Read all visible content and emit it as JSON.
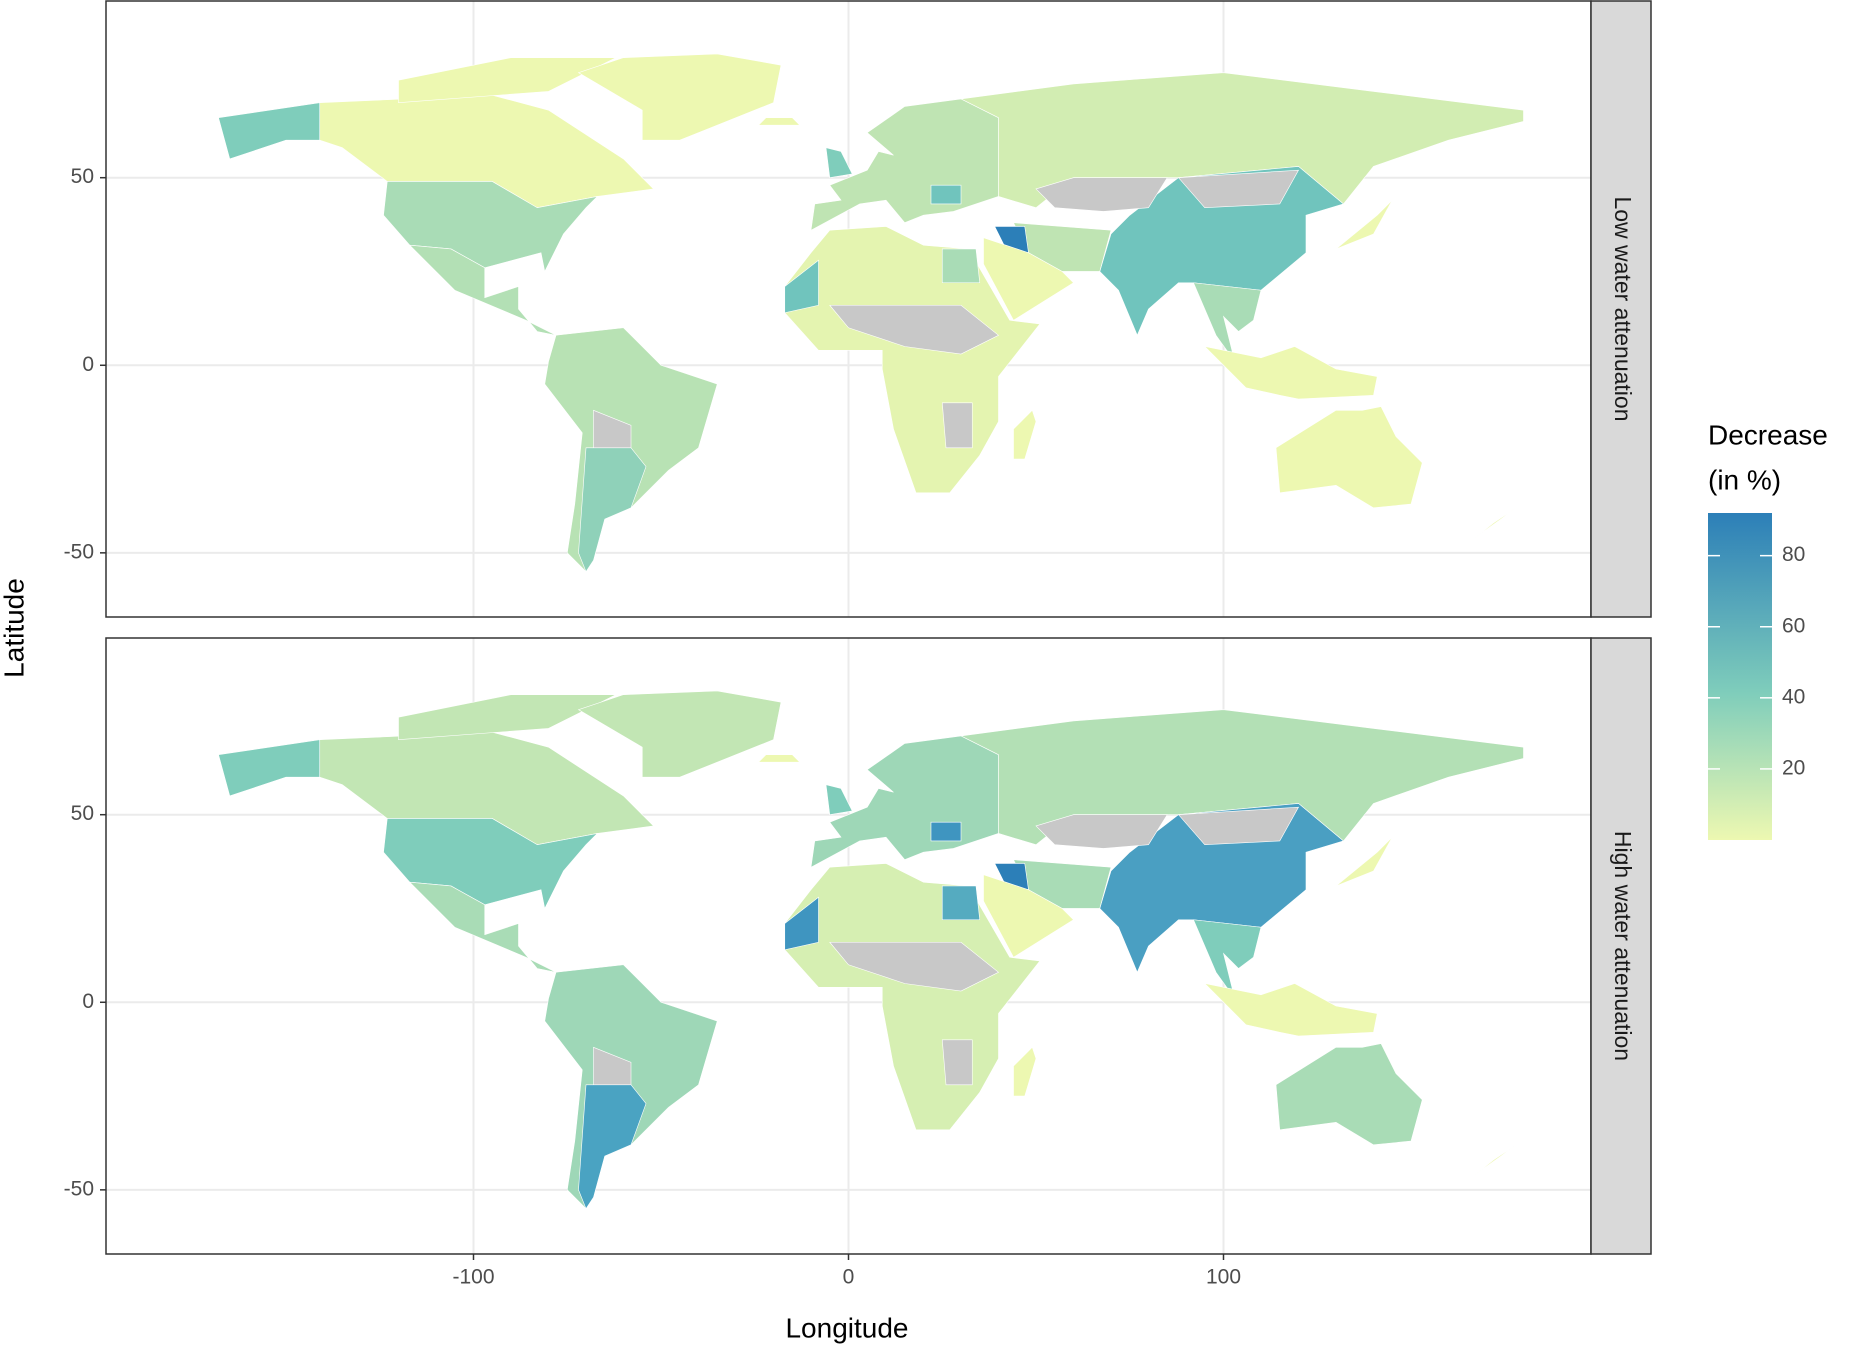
{
  "chart_data": {
    "type": "choropleth",
    "facets": [
      "Low water attenuation",
      "High water attenuation"
    ],
    "x_label": "Longitude",
    "y_label": "Latitude",
    "xlim": [
      -198,
      198
    ],
    "xticks": [
      -100,
      0,
      100
    ],
    "ylim": [
      -67.1,
      97.1
    ],
    "yticks": [
      -50,
      0,
      50
    ],
    "grid": true,
    "legend_title": [
      "Decrease",
      "(in %)"
    ],
    "colorbar_lim": [
      0,
      92
    ],
    "colorbar_ticks": [
      20,
      40,
      60,
      80
    ],
    "colors": [
      "#edf8b1",
      "#7fcdbb",
      "#2c7fb8"
    ],
    "missing_color": "#c8c8c8"
  }
}
